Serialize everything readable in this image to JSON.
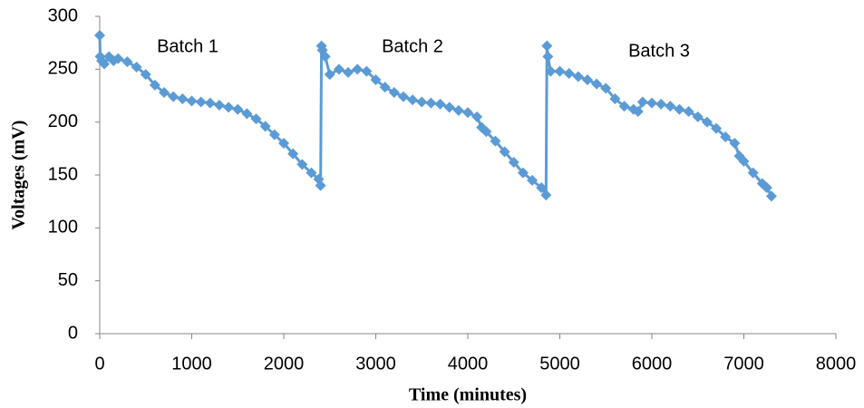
{
  "chart_data": {
    "type": "line",
    "x_label": "Time (minutes)",
    "y_label": "Voltages (mV)",
    "annotations": [
      "Batch 1",
      "Batch 2",
      "Batch 3"
    ],
    "xlim": [
      0,
      8000
    ],
    "xticks": [
      0,
      1000,
      2000,
      3000,
      4000,
      5000,
      6000,
      7000,
      8000
    ],
    "ylim": [
      0,
      300
    ],
    "yticks": [
      0,
      50,
      100,
      150,
      200,
      250,
      300
    ],
    "grid": false,
    "marker": "diamond",
    "series": [
      {
        "color": "#5b9bd5",
        "x": [
          0,
          5,
          20,
          50,
          100,
          150,
          200,
          300,
          400,
          500,
          600,
          700,
          800,
          900,
          1000,
          1100,
          1200,
          1300,
          1400,
          1500,
          1600,
          1700,
          1800,
          1900,
          2000,
          2100,
          2200,
          2300,
          2380,
          2400,
          2410,
          2420,
          2450,
          2500,
          2600,
          2700,
          2800,
          2900,
          3000,
          3100,
          3200,
          3300,
          3400,
          3500,
          3600,
          3700,
          3800,
          3900,
          4000,
          4100,
          4150,
          4200,
          4300,
          4400,
          4500,
          4600,
          4700,
          4800,
          4850,
          4860,
          4870,
          4900,
          5000,
          5100,
          5200,
          5300,
          5400,
          5500,
          5600,
          5700,
          5800,
          5850,
          5900,
          6000,
          6100,
          6200,
          6300,
          6400,
          6500,
          6600,
          6700,
          6800,
          6900,
          6950,
          7000,
          7100,
          7200,
          7250,
          7300
        ],
        "values": [
          282,
          262,
          258,
          255,
          262,
          258,
          260,
          257,
          252,
          245,
          235,
          228,
          224,
          222,
          220,
          219,
          218,
          216,
          214,
          212,
          208,
          203,
          196,
          188,
          180,
          170,
          160,
          152,
          146,
          140,
          272,
          268,
          262,
          245,
          250,
          247,
          250,
          248,
          240,
          233,
          228,
          224,
          221,
          219,
          218,
          217,
          214,
          211,
          209,
          205,
          195,
          191,
          182,
          172,
          162,
          152,
          145,
          138,
          131,
          272,
          262,
          248,
          248,
          246,
          243,
          240,
          236,
          232,
          222,
          215,
          212,
          210,
          219,
          218,
          217,
          215,
          212,
          210,
          205,
          200,
          194,
          186,
          180,
          168,
          163,
          152,
          142,
          138,
          130
        ]
      }
    ]
  }
}
